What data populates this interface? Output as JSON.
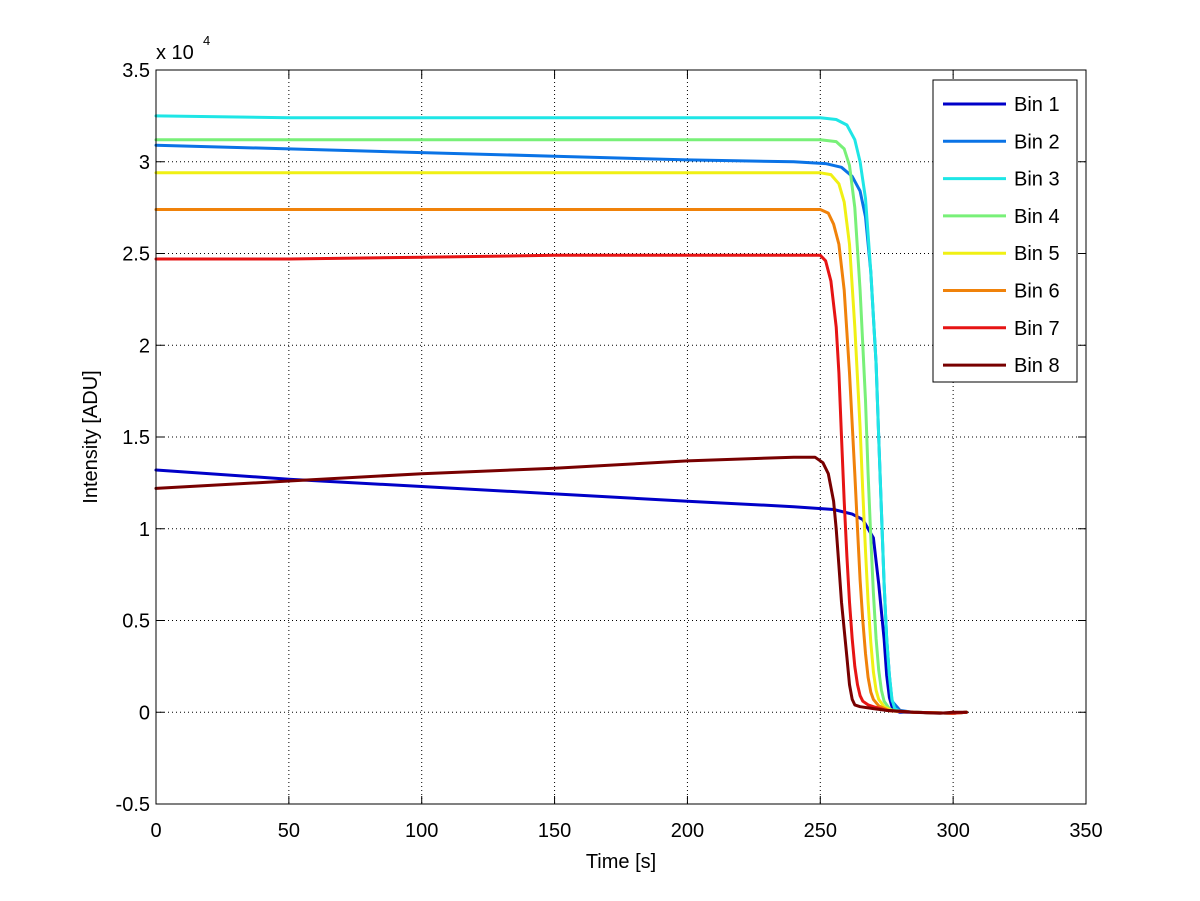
{
  "chart_data": {
    "type": "line",
    "title": "",
    "xlabel": "Time [s]",
    "ylabel": "Intensity [ADU]",
    "xlim": [
      0,
      350
    ],
    "ylim": [
      -5000,
      35000
    ],
    "y_scale_label": "x 10",
    "y_scale_exponent": "4",
    "xticks": [
      0,
      50,
      100,
      150,
      200,
      250,
      300,
      350
    ],
    "xtick_labels": [
      "0",
      "50",
      "100",
      "150",
      "200",
      "250",
      "300",
      "350"
    ],
    "yticks": [
      -5000,
      0,
      5000,
      10000,
      15000,
      20000,
      25000,
      30000,
      35000
    ],
    "ytick_labels": [
      "-0.5",
      "0",
      "0.5",
      "1",
      "1.5",
      "2",
      "2.5",
      "3",
      "3.5"
    ],
    "grid": true,
    "legend_position": "top-right",
    "series": [
      {
        "name": "Bin 1",
        "color": "#0000c8",
        "x": [
          0,
          50,
          100,
          150,
          200,
          240,
          255,
          262,
          266,
          270,
          272,
          274,
          275,
          276,
          277,
          278,
          280,
          285,
          300,
          305
        ],
        "y": [
          13200,
          12700,
          12300,
          11900,
          11500,
          11200,
          11050,
          10800,
          10500,
          9500,
          7000,
          4000,
          2000,
          800,
          300,
          100,
          0,
          0,
          -50,
          0
        ]
      },
      {
        "name": "Bin 2",
        "color": "#0a73e6",
        "x": [
          0,
          50,
          100,
          150,
          200,
          240,
          252,
          258,
          262,
          265,
          267,
          269,
          271,
          272,
          273,
          274,
          275,
          276,
          277,
          280,
          285,
          300,
          305
        ],
        "y": [
          30900,
          30700,
          30500,
          30300,
          30100,
          30000,
          29900,
          29700,
          29200,
          28400,
          27000,
          24000,
          19000,
          15000,
          11000,
          7000,
          4000,
          2000,
          600,
          100,
          0,
          -50,
          0
        ]
      },
      {
        "name": "Bin 3",
        "color": "#1ee6e6",
        "x": [
          0,
          50,
          100,
          150,
          200,
          250,
          256,
          260,
          263,
          265,
          267,
          269,
          271,
          272,
          273,
          274,
          275,
          276,
          277,
          278,
          280,
          285,
          300,
          305
        ],
        "y": [
          32500,
          32400,
          32400,
          32400,
          32400,
          32400,
          32300,
          32000,
          31200,
          30000,
          28000,
          24000,
          19000,
          15000,
          11000,
          7000,
          4000,
          2000,
          700,
          200,
          50,
          0,
          -50,
          0
        ]
      },
      {
        "name": "Bin 4",
        "color": "#78f078",
        "x": [
          0,
          50,
          100,
          150,
          200,
          250,
          256,
          259,
          261,
          263,
          265,
          267,
          268,
          269,
          270,
          271,
          272,
          273,
          274,
          276,
          278,
          285,
          300,
          305
        ],
        "y": [
          31200,
          31200,
          31200,
          31200,
          31200,
          31200,
          31100,
          30700,
          29800,
          27500,
          23000,
          17000,
          13000,
          9500,
          6500,
          4000,
          2300,
          1200,
          600,
          200,
          50,
          0,
          -50,
          0
        ]
      },
      {
        "name": "Bin 5",
        "color": "#f0f014",
        "x": [
          0,
          50,
          100,
          150,
          200,
          250,
          254,
          257,
          259,
          261,
          263,
          265,
          266,
          267,
          268,
          269,
          270,
          271,
          272,
          274,
          277,
          285,
          300,
          305
        ],
        "y": [
          29400,
          29400,
          29400,
          29400,
          29400,
          29400,
          29300,
          28800,
          27800,
          25500,
          21000,
          15500,
          12000,
          8800,
          6000,
          3800,
          2200,
          1200,
          700,
          300,
          80,
          0,
          -50,
          0
        ]
      },
      {
        "name": "Bin 6",
        "color": "#f0820a",
        "x": [
          0,
          50,
          100,
          150,
          200,
          250,
          253,
          255,
          257,
          259,
          261,
          263,
          264,
          265,
          266,
          267,
          268,
          269,
          270,
          272,
          276,
          285,
          300,
          305
        ],
        "y": [
          27400,
          27400,
          27400,
          27400,
          27400,
          27400,
          27200,
          26600,
          25500,
          23000,
          18500,
          13000,
          10000,
          7200,
          5000,
          3200,
          1900,
          1100,
          700,
          350,
          80,
          0,
          -50,
          0
        ]
      },
      {
        "name": "Bin 7",
        "color": "#e61414",
        "x": [
          0,
          50,
          100,
          150,
          200,
          250,
          252,
          254,
          256,
          257,
          258,
          259,
          260,
          261,
          262,
          263,
          264,
          265,
          266,
          268,
          270,
          275,
          285,
          300,
          305
        ],
        "y": [
          24700,
          24700,
          24800,
          24900,
          24900,
          24900,
          24600,
          23500,
          21000,
          18500,
          15000,
          11500,
          8500,
          6000,
          4000,
          2500,
          1500,
          900,
          600,
          400,
          300,
          100,
          0,
          -50,
          0
        ]
      },
      {
        "name": "Bin 8",
        "color": "#780000",
        "x": [
          0,
          50,
          100,
          150,
          200,
          240,
          248,
          251,
          253,
          255,
          256,
          257,
          258,
          259,
          260,
          261,
          262,
          263,
          265,
          270,
          275,
          280,
          285,
          295,
          300,
          305
        ],
        "y": [
          12200,
          12600,
          13000,
          13300,
          13700,
          13900,
          13900,
          13600,
          13000,
          11500,
          10000,
          8000,
          6000,
          4500,
          3000,
          1500,
          700,
          400,
          300,
          200,
          100,
          50,
          0,
          -50,
          0,
          0
        ]
      }
    ]
  }
}
